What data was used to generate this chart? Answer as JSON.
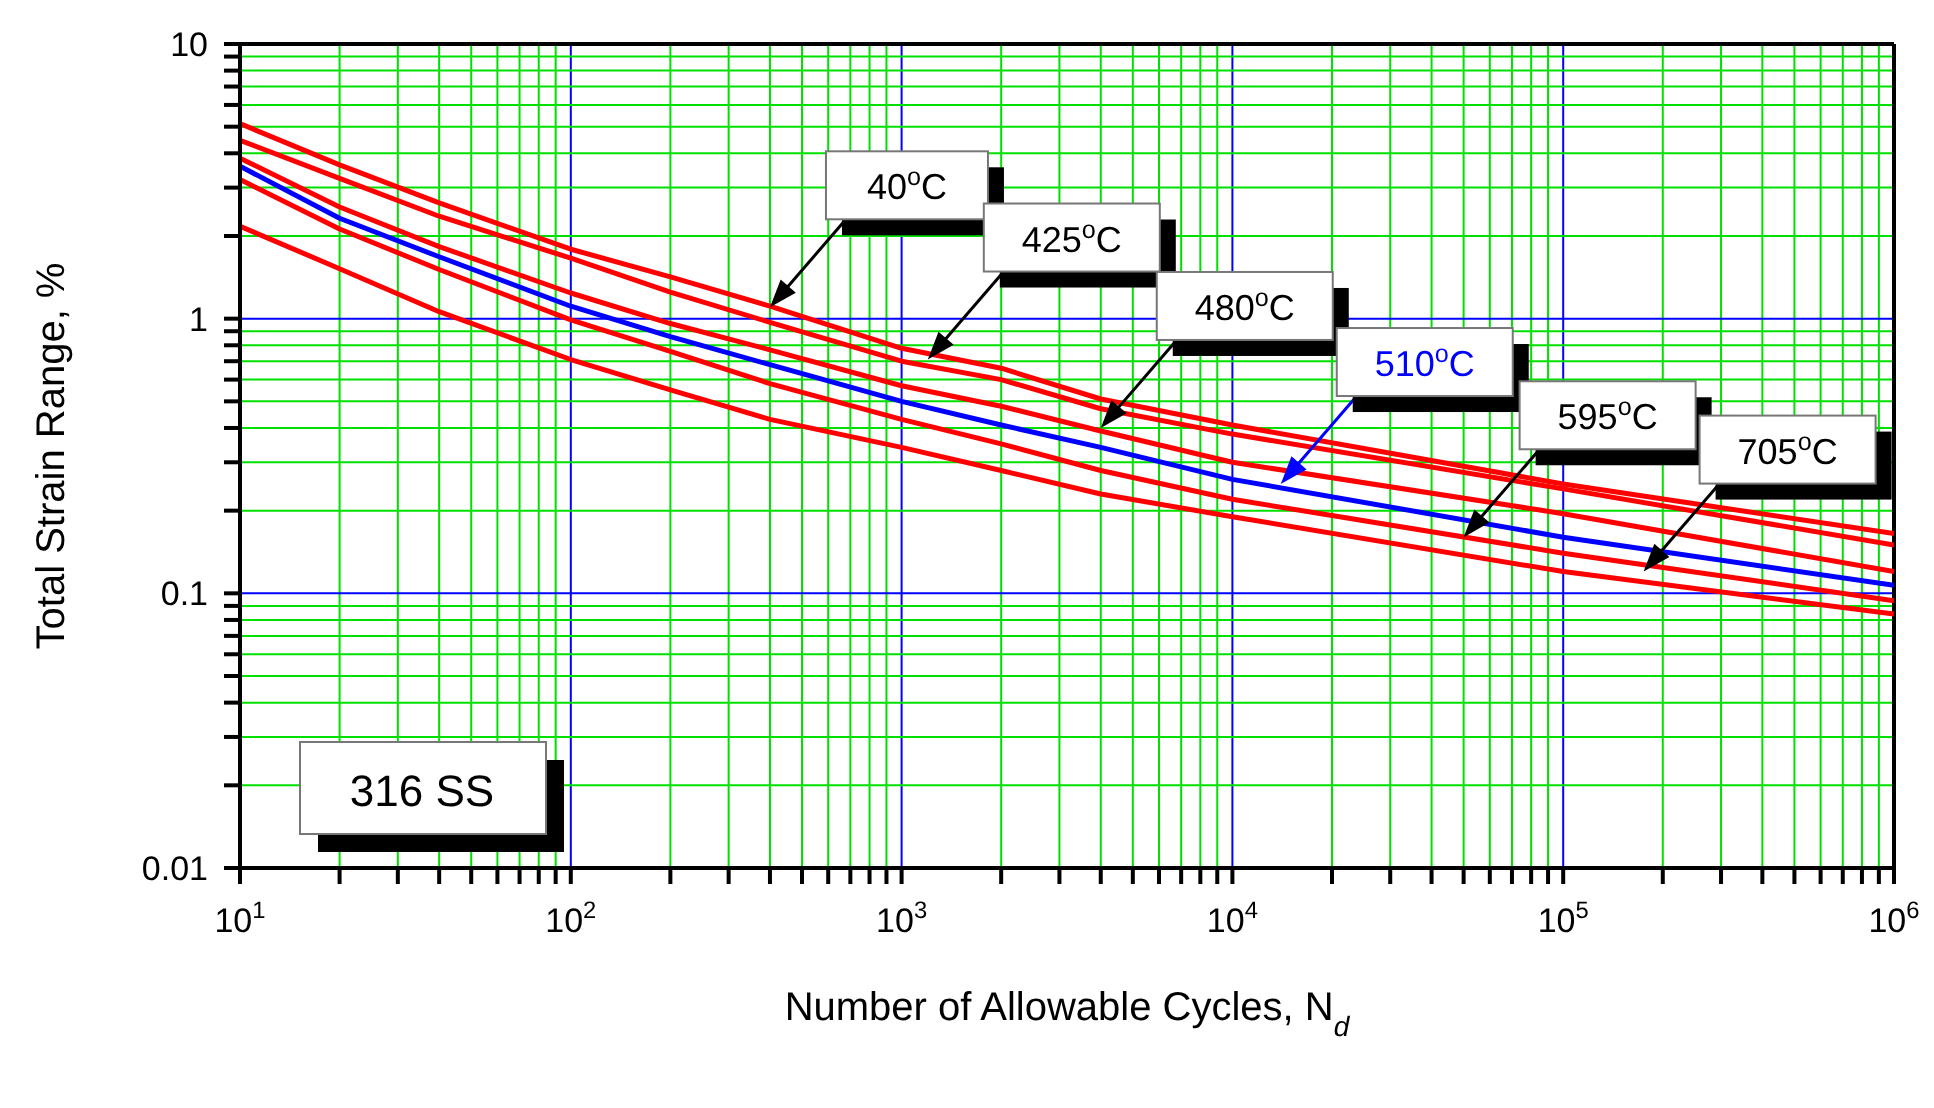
{
  "chart_data": {
    "type": "line",
    "xlabel": "Number of Allowable Cycles, N$_{d}$",
    "ylabel": "Total Strain Range, %",
    "x": [
      10,
      20,
      40,
      100,
      200,
      400,
      1000,
      2000,
      4000,
      10000,
      100000,
      1000000
    ],
    "series": [
      {
        "color": "#ff0000",
        "values": [
          5.13,
          3.63,
          2.64,
          1.79,
          1.42,
          1.11,
          0.78,
          0.66,
          0.51,
          0.41,
          0.25,
          0.165
        ]
      },
      {
        "color": "#ff0000",
        "values": [
          4.46,
          3.24,
          2.36,
          1.66,
          1.25,
          0.97,
          0.7,
          0.6,
          0.47,
          0.38,
          0.24,
          0.15
        ]
      },
      {
        "color": "#ff0000",
        "values": [
          3.84,
          2.55,
          1.83,
          1.24,
          0.96,
          0.77,
          0.57,
          0.48,
          0.39,
          0.3,
          0.195,
          0.12
        ]
      },
      {
        "color": "#0000ff",
        "values": [
          3.59,
          2.32,
          1.68,
          1.11,
          0.86,
          0.68,
          0.5,
          0.41,
          0.34,
          0.26,
          0.16,
          0.107
        ]
      },
      {
        "color": "#ff0000",
        "values": [
          3.21,
          2.12,
          1.51,
          0.99,
          0.76,
          0.58,
          0.43,
          0.35,
          0.28,
          0.22,
          0.14,
          0.094
        ]
      },
      {
        "color": "#ff0000",
        "values": [
          2.17,
          1.52,
          1.06,
          0.71,
          0.55,
          0.43,
          0.34,
          0.28,
          0.23,
          0.19,
          0.12,
          0.084
        ]
      }
    ],
    "annotations": [
      {
        "text": "40$^{o}$C",
        "x": 400,
        "y": 1.1
      },
      {
        "text": "425$^{o}$C",
        "x": 1200,
        "y": 0.71
      },
      {
        "text": "480$^{o}$C",
        "x": 4000,
        "y": 0.4
      },
      {
        "text": "510$^{o}$C",
        "x": 14000,
        "y": 0.25
      },
      {
        "text": "595$^{o}$C",
        "x": 50000,
        "y": 0.16
      },
      {
        "text": "705$^{o}$C",
        "x": 175000,
        "y": 0.12
      },
      "316 SS"
    ],
    "log": "xy",
    "xlim": [
      10,
      1000000
    ],
    "ylim": [
      0.01,
      10
    ],
    "xticks": [
      {
        "value": 10,
        "label": "10$^{1}$"
      },
      {
        "value": 20,
        "label": null
      },
      {
        "value": 30,
        "label": null
      },
      {
        "value": 40,
        "label": null
      },
      {
        "value": 50,
        "label": null
      },
      {
        "value": 60,
        "label": null
      },
      {
        "value": 70,
        "label": null
      },
      {
        "value": 80,
        "label": null
      },
      {
        "value": 90,
        "label": null
      },
      {
        "value": 100,
        "label": "10$^{2}$"
      },
      {
        "value": 200,
        "label": null
      },
      {
        "value": 300,
        "label": null
      },
      {
        "value": 400,
        "label": null
      },
      {
        "value": 500,
        "label": null
      },
      {
        "value": 600,
        "label": null
      },
      {
        "value": 700,
        "label": null
      },
      {
        "value": 800,
        "label": null
      },
      {
        "value": 900,
        "label": null
      },
      {
        "value": 1000,
        "label": "10$^{3}$"
      },
      {
        "value": 2000,
        "label": null
      },
      {
        "value": 3000,
        "label": null
      },
      {
        "value": 4000,
        "label": null
      },
      {
        "value": 5000,
        "label": null
      },
      {
        "value": 6000,
        "label": null
      },
      {
        "value": 7000,
        "label": null
      },
      {
        "value": 8000,
        "label": null
      },
      {
        "value": 9000,
        "label": null
      },
      {
        "value": 10000,
        "label": "10$^{4}$"
      },
      {
        "value": 20000,
        "label": null
      },
      {
        "value": 30000,
        "label": null
      },
      {
        "value": 40000,
        "label": null
      },
      {
        "value": 50000,
        "label": null
      },
      {
        "value": 60000,
        "label": null
      },
      {
        "value": 70000,
        "label": null
      },
      {
        "value": 80000,
        "label": null
      },
      {
        "value": 90000,
        "label": null
      },
      {
        "value": 100000,
        "label": "10$^{5}$"
      },
      {
        "value": 200000,
        "label": null
      },
      {
        "value": 300000,
        "label": null
      },
      {
        "value": 400000,
        "label": null
      },
      {
        "value": 500000,
        "label": null
      },
      {
        "value": 600000,
        "label": null
      },
      {
        "value": 700000,
        "label": null
      },
      {
        "value": 800000,
        "label": null
      },
      {
        "value": 900000,
        "label": null
      },
      {
        "value": 1000000,
        "label": "10$^{6}$"
      }
    ],
    "yticks": [
      0.01,
      {
        "value": 0.02,
        "label": null
      },
      {
        "value": 0.03,
        "label": null
      },
      {
        "value": 0.04,
        "label": null
      },
      {
        "value": 0.05,
        "label": null
      },
      {
        "value": 0.06,
        "label": null
      },
      {
        "value": 0.07,
        "label": null
      },
      {
        "value": 0.08,
        "label": null
      },
      {
        "value": 0.09,
        "label": null
      },
      0.1,
      {
        "value": 0.2,
        "label": null
      },
      {
        "value": 0.3,
        "label": null
      },
      {
        "value": 0.4,
        "label": null
      },
      {
        "value": 0.5,
        "label": null
      },
      {
        "value": 0.6,
        "label": null
      },
      {
        "value": 0.7,
        "label": null
      },
      {
        "value": 0.8,
        "label": null
      },
      {
        "value": 0.9,
        "label": null
      },
      1,
      {
        "value": 2,
        "label": null
      },
      {
        "value": 3,
        "label": null
      },
      {
        "value": 4,
        "label": null
      },
      {
        "value": 5,
        "label": null
      },
      {
        "value": 6,
        "label": null
      },
      {
        "value": 7,
        "label": null
      },
      {
        "value": 8,
        "label": null
      },
      {
        "value": 9,
        "label": null
      },
      10
    ],
    "grid": true,
    "line_style": "solid",
    "marker": "none"
  }
}
